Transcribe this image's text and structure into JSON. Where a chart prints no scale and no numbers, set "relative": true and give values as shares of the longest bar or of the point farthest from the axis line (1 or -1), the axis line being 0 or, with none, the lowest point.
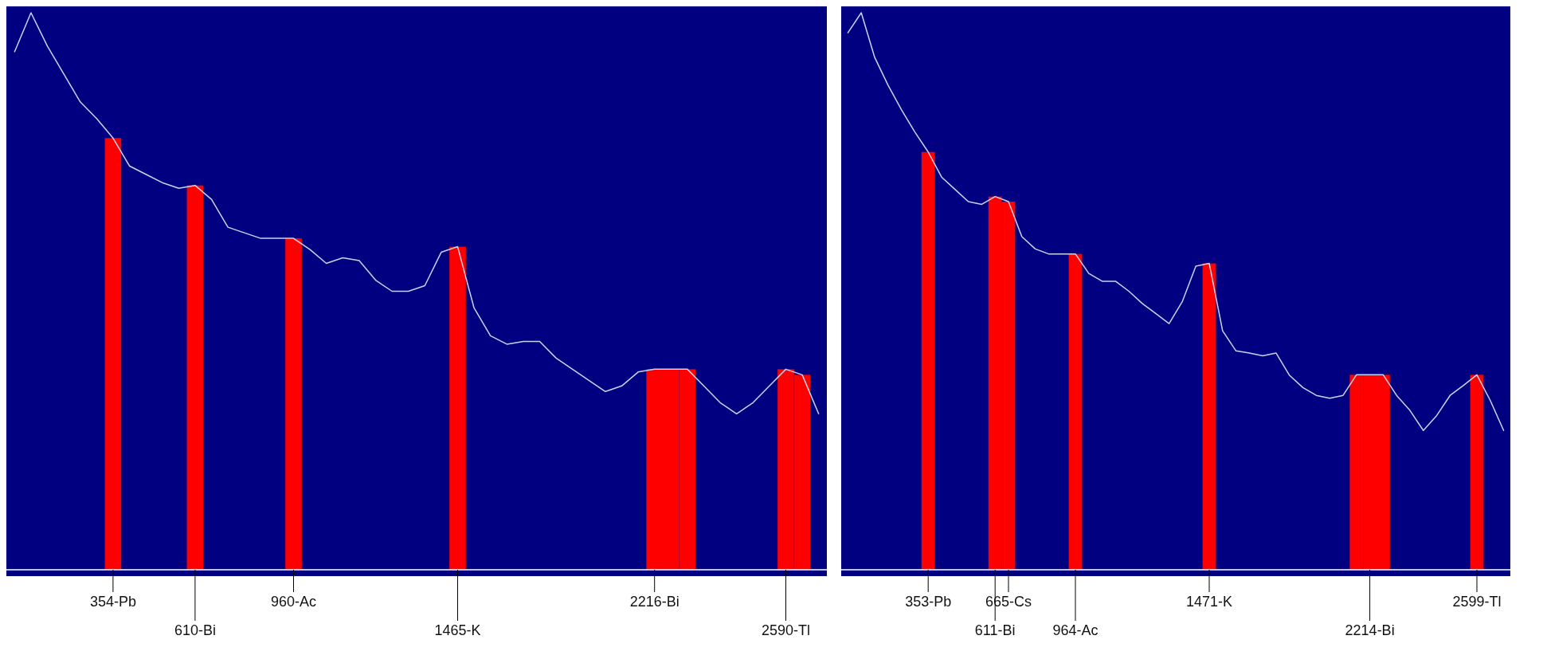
{
  "chart_data": [
    {
      "type": "line",
      "relative": true,
      "categories": [
        null,
        null,
        null,
        null,
        null,
        null,
        "354-Pb",
        null,
        null,
        null,
        null,
        "610-Bi",
        null,
        null,
        null,
        null,
        null,
        "960-Ac",
        null,
        null,
        null,
        null,
        null,
        null,
        null,
        null,
        null,
        "1465-K",
        null,
        null,
        null,
        null,
        null,
        null,
        null,
        null,
        null,
        null,
        null,
        "2216-Bi",
        null,
        null,
        null,
        null,
        null,
        null,
        null,
        "2590-Tl",
        null,
        null
      ],
      "series": [
        {
          "type": "line",
          "color": "#c8d4f0",
          "values": [
            0.93,
            1,
            0.94,
            0.89,
            0.84,
            0.81,
            0.775,
            0.725,
            0.71,
            0.695,
            0.685,
            0.69,
            0.665,
            0.615,
            0.605,
            0.595,
            0.595,
            0.595,
            0.575,
            0.55,
            0.56,
            0.555,
            0.52,
            0.5,
            0.5,
            0.51,
            0.57,
            0.58,
            0.47,
            0.42,
            0.405,
            0.41,
            0.41,
            0.38,
            0.36,
            0.34,
            0.32,
            0.33,
            0.355,
            0.36,
            0.36,
            0.36,
            0.33,
            0.3,
            0.28,
            0.3,
            0.33,
            0.36,
            0.35,
            0.28
          ]
        },
        {
          "type": "bar",
          "color": "#ff0000",
          "values": [
            null,
            null,
            null,
            null,
            null,
            null,
            0.775,
            null,
            null,
            null,
            null,
            0.69,
            null,
            null,
            null,
            null,
            null,
            0.595,
            null,
            null,
            null,
            null,
            null,
            null,
            null,
            null,
            null,
            0.58,
            null,
            null,
            null,
            null,
            null,
            null,
            null,
            null,
            null,
            null,
            null,
            0.36,
            0.36,
            0.36,
            null,
            null,
            null,
            null,
            null,
            0.36,
            0.35,
            null
          ]
        }
      ]
    },
    {
      "type": "line",
      "relative": true,
      "categories": [
        null,
        null,
        null,
        null,
        null,
        null,
        "353-Pb",
        null,
        null,
        null,
        null,
        "611-Bi",
        "665-Cs",
        null,
        null,
        null,
        null,
        "964-Ac",
        null,
        null,
        null,
        null,
        null,
        null,
        null,
        null,
        null,
        "1471-K",
        null,
        null,
        null,
        null,
        null,
        null,
        null,
        null,
        null,
        null,
        null,
        "2214-Bi",
        null,
        null,
        null,
        null,
        null,
        null,
        null,
        "2599-Tl",
        null,
        null
      ],
      "series": [
        {
          "type": "line",
          "color": "#c8d4f0",
          "values": [
            0.964,
            1,
            0.92,
            0.87,
            0.826,
            0.786,
            0.75,
            0.705,
            0.683,
            0.661,
            0.656,
            0.67,
            0.661,
            0.598,
            0.576,
            0.567,
            0.567,
            0.567,
            0.532,
            0.518,
            0.518,
            0.5,
            0.478,
            0.46,
            0.442,
            0.482,
            0.545,
            0.55,
            0.429,
            0.393,
            0.389,
            0.384,
            0.389,
            0.349,
            0.327,
            0.313,
            0.308,
            0.313,
            0.35,
            0.35,
            0.35,
            0.313,
            0.286,
            0.25,
            0.277,
            0.313,
            0.331,
            0.35,
            0.304,
            0.25
          ]
        },
        {
          "type": "bar",
          "color": "#ff0000",
          "values": [
            null,
            null,
            null,
            null,
            null,
            null,
            0.75,
            null,
            null,
            null,
            null,
            0.67,
            0.661,
            null,
            null,
            null,
            null,
            0.567,
            null,
            null,
            null,
            null,
            null,
            null,
            null,
            null,
            null,
            0.55,
            null,
            null,
            null,
            null,
            null,
            null,
            null,
            null,
            null,
            null,
            0.35,
            0.35,
            0.35,
            null,
            null,
            null,
            null,
            null,
            null,
            0.35,
            null,
            null
          ]
        }
      ]
    }
  ]
}
